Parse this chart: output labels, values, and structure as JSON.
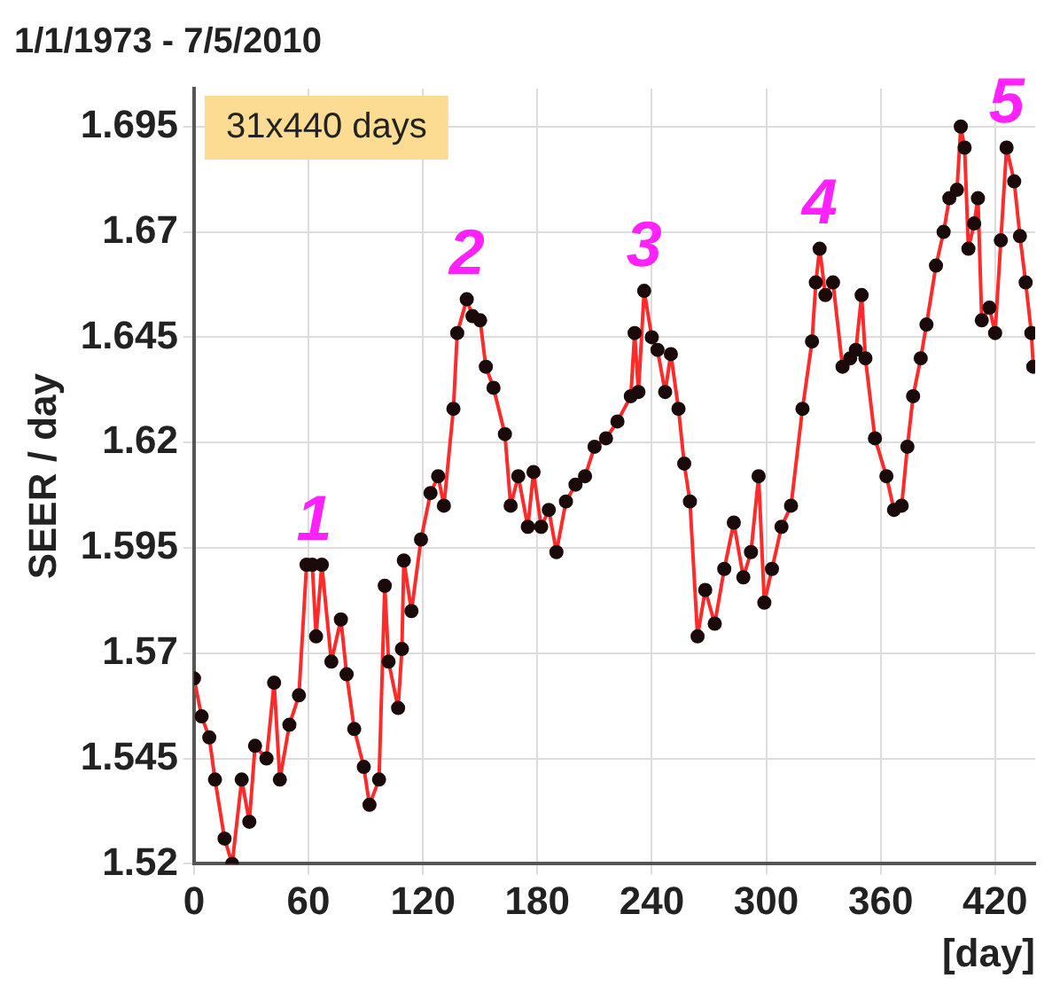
{
  "chart_data": {
    "type": "line",
    "title": "1/1/1973 - 7/5/2010",
    "xlabel": "[day]",
    "ylabel": "SEER / day",
    "annotations": [
      "31x440 days",
      {
        "text": "1",
        "x": 63,
        "y": 1.591
      },
      {
        "text": "2",
        "x": 143,
        "y": 1.654
      },
      {
        "text": "3",
        "x": 236,
        "y": 1.656
      },
      {
        "text": "4",
        "x": 328,
        "y": 1.666
      },
      {
        "text": "5",
        "x": 426,
        "y": 1.69
      }
    ],
    "xlim": [
      0,
      441
    ],
    "xticks": [
      0,
      60,
      120,
      180,
      240,
      300,
      360,
      420
    ],
    "ylim": [
      1.52,
      1.704
    ],
    "yticks": [
      1.52,
      1.545,
      1.57,
      1.595,
      1.62,
      1.645,
      1.67,
      1.695
    ],
    "grid": true,
    "marker": "circle",
    "line_style": "solid",
    "legend": false,
    "series": [
      {
        "color": "#ff2a2a",
        "x": [
          0,
          4,
          8,
          11,
          16,
          20,
          25,
          29,
          32,
          38,
          42,
          45,
          50,
          55,
          59,
          62,
          64,
          67,
          72,
          77,
          80,
          84,
          89,
          92,
          97,
          100,
          102,
          107,
          109,
          110,
          114,
          119,
          124,
          128,
          131,
          136,
          138,
          143,
          146,
          150,
          153,
          157,
          163,
          166,
          170,
          175,
          178,
          182,
          186,
          190,
          195,
          200,
          205,
          210,
          216,
          222,
          229,
          231,
          233,
          236,
          240,
          243,
          247,
          250,
          254,
          257,
          260,
          264,
          268,
          273,
          278,
          283,
          288,
          292,
          296,
          299,
          303,
          308,
          313,
          319,
          324,
          326,
          328,
          331,
          335,
          340,
          344,
          347,
          350,
          352,
          357,
          363,
          367,
          371,
          374,
          377,
          381,
          384,
          389,
          393,
          396,
          400,
          402,
          404,
          406,
          409,
          411,
          413,
          417,
          420,
          423,
          426,
          430,
          433,
          436,
          439,
          440
        ],
        "values": [
          1.564,
          1.555,
          1.55,
          1.54,
          1.526,
          1.52,
          1.54,
          1.53,
          1.548,
          1.545,
          1.563,
          1.54,
          1.553,
          1.56,
          1.591,
          1.591,
          1.574,
          1.591,
          1.568,
          1.578,
          1.565,
          1.552,
          1.543,
          1.534,
          1.54,
          1.586,
          1.568,
          1.557,
          1.571,
          1.592,
          1.58,
          1.597,
          1.608,
          1.612,
          1.605,
          1.628,
          1.646,
          1.654,
          1.65,
          1.649,
          1.638,
          1.633,
          1.622,
          1.605,
          1.612,
          1.6,
          1.613,
          1.6,
          1.604,
          1.594,
          1.606,
          1.61,
          1.612,
          1.619,
          1.621,
          1.625,
          1.631,
          1.646,
          1.632,
          1.656,
          1.645,
          1.642,
          1.632,
          1.641,
          1.628,
          1.615,
          1.606,
          1.574,
          1.585,
          1.577,
          1.59,
          1.601,
          1.588,
          1.594,
          1.612,
          1.582,
          1.59,
          1.6,
          1.605,
          1.628,
          1.644,
          1.658,
          1.666,
          1.655,
          1.658,
          1.638,
          1.64,
          1.642,
          1.655,
          1.64,
          1.621,
          1.612,
          1.604,
          1.605,
          1.619,
          1.631,
          1.64,
          1.648,
          1.662,
          1.67,
          1.678,
          1.68,
          1.695,
          1.69,
          1.666,
          1.672,
          1.678,
          1.649,
          1.652,
          1.646,
          1.668,
          1.69,
          1.682,
          1.669,
          1.658,
          1.646,
          1.638
        ]
      }
    ]
  }
}
